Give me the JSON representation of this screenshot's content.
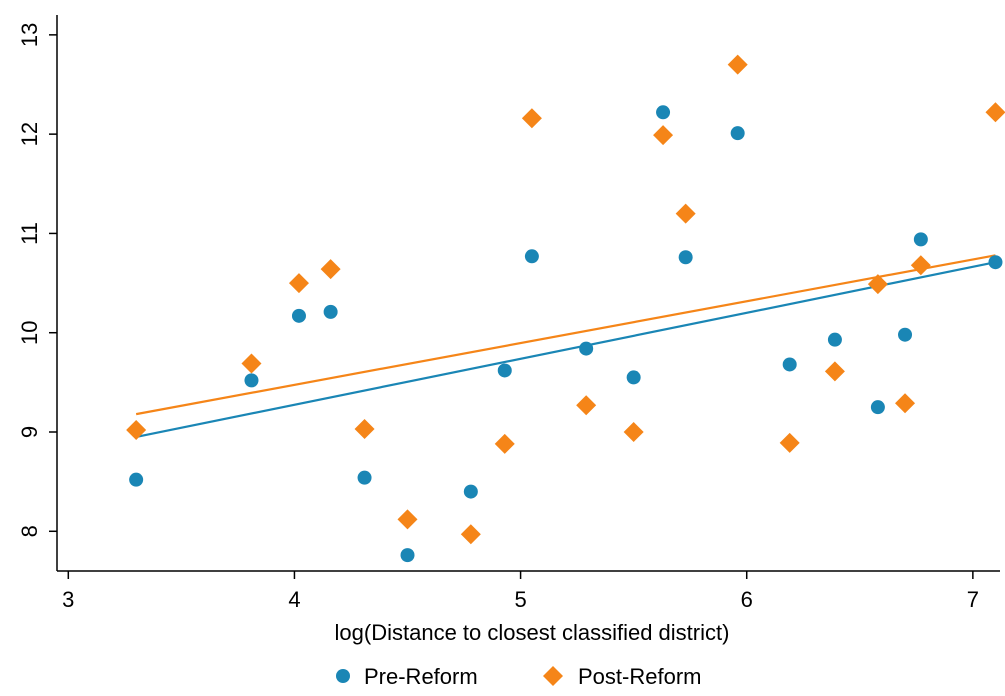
{
  "chart_data": {
    "type": "scatter",
    "title": "",
    "xlabel": "log(Distance to closest classified district)",
    "ylabel": "",
    "xlim": [
      2.95,
      7.12
    ],
    "ylim": [
      7.6,
      13.2
    ],
    "xticks": [
      3,
      4,
      5,
      6,
      7
    ],
    "yticks": [
      8,
      9,
      10,
      11,
      12,
      13
    ],
    "grid": false,
    "legend_position": "bottom",
    "series": [
      {
        "name": "Pre-Reform",
        "marker": "circle",
        "color": "#1a86b5",
        "points": [
          [
            3.3,
            8.52
          ],
          [
            3.81,
            9.52
          ],
          [
            4.02,
            10.17
          ],
          [
            4.16,
            10.21
          ],
          [
            4.31,
            8.54
          ],
          [
            4.5,
            7.76
          ],
          [
            4.78,
            8.4
          ],
          [
            4.93,
            9.62
          ],
          [
            5.05,
            10.77
          ],
          [
            5.29,
            9.84
          ],
          [
            5.5,
            9.55
          ],
          [
            5.63,
            12.22
          ],
          [
            5.73,
            10.76
          ],
          [
            5.96,
            12.01
          ],
          [
            6.19,
            9.68
          ],
          [
            6.39,
            9.93
          ],
          [
            6.58,
            9.25
          ],
          [
            6.7,
            9.98
          ],
          [
            6.77,
            10.94
          ],
          [
            7.1,
            10.71
          ]
        ],
        "fit": {
          "x": [
            3.3,
            7.1
          ],
          "y": [
            8.95,
            10.71
          ]
        }
      },
      {
        "name": "Post-Reform",
        "marker": "diamond",
        "color": "#f58518",
        "points": [
          [
            3.3,
            9.02
          ],
          [
            3.81,
            9.69
          ],
          [
            4.02,
            10.5
          ],
          [
            4.16,
            10.64
          ],
          [
            4.31,
            9.03
          ],
          [
            4.5,
            8.12
          ],
          [
            4.78,
            7.97
          ],
          [
            4.93,
            8.88
          ],
          [
            5.05,
            12.16
          ],
          [
            5.29,
            9.27
          ],
          [
            5.5,
            9.0
          ],
          [
            5.63,
            11.99
          ],
          [
            5.73,
            11.2
          ],
          [
            5.96,
            12.7
          ],
          [
            6.19,
            8.89
          ],
          [
            6.39,
            9.61
          ],
          [
            6.58,
            10.49
          ],
          [
            6.7,
            9.29
          ],
          [
            6.77,
            10.68
          ],
          [
            7.1,
            12.22
          ]
        ],
        "fit": {
          "x": [
            3.3,
            7.1
          ],
          "y": [
            9.18,
            10.78
          ]
        }
      }
    ]
  }
}
